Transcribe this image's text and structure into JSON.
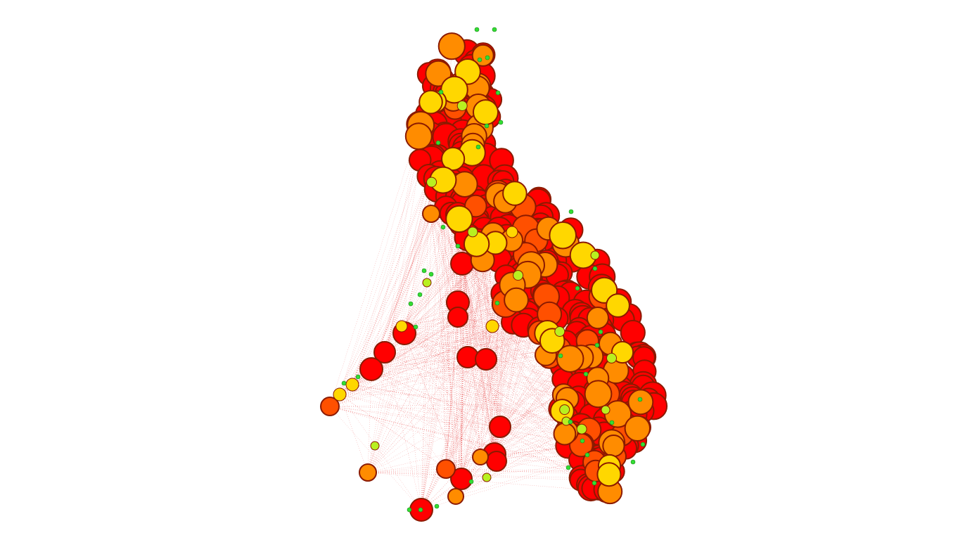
{
  "diagram": {
    "type": "network-graph",
    "background": "#ffffff",
    "edge_color": "#e00000",
    "node_border_color": "#8b1a00",
    "palette": {
      "hub": "#ff0000",
      "high": "#ff5000",
      "upper": "#ff8c00",
      "mid": "#ffd700",
      "low": "#b8f020",
      "leaf": "#33dd33"
    },
    "node_color_scale": [
      "red",
      "orange-red",
      "orange",
      "yellow",
      "yellow-green",
      "green"
    ]
  }
}
